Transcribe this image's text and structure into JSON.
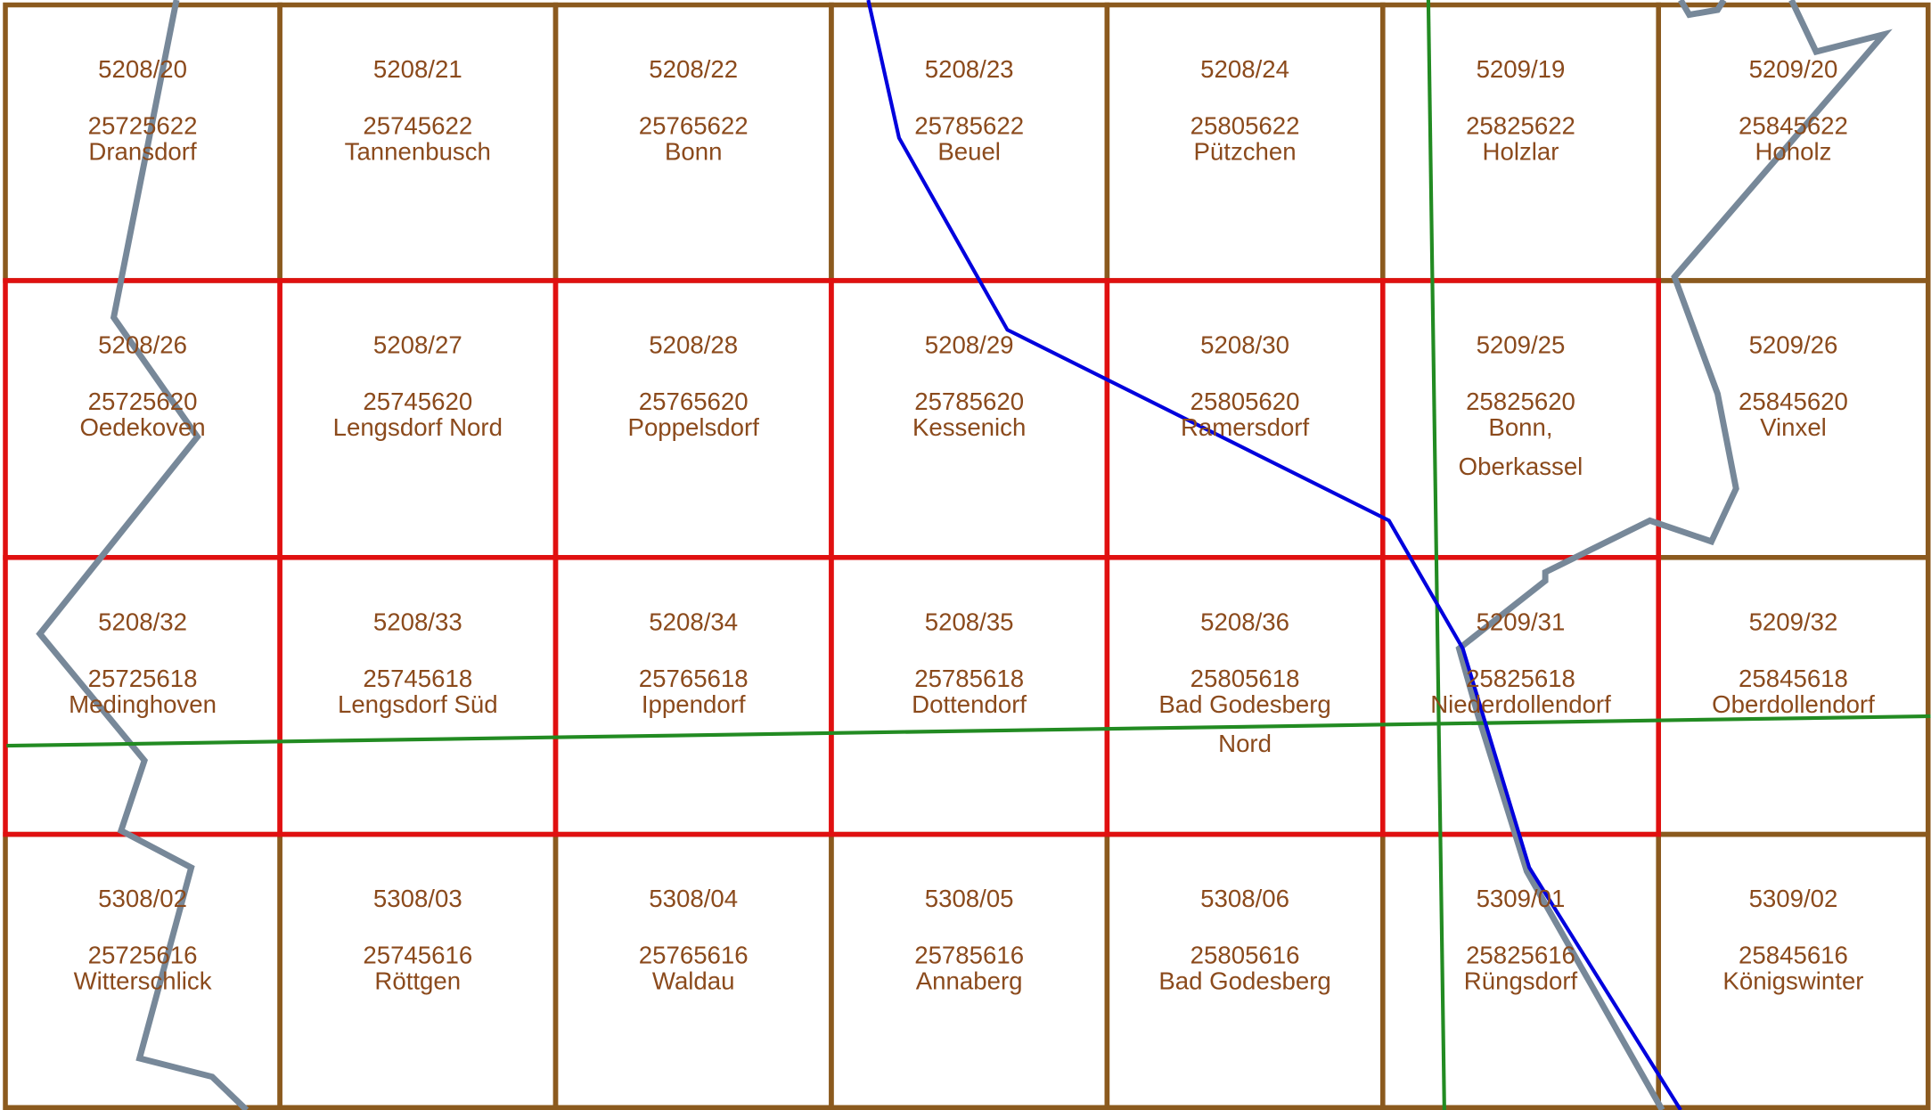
{
  "tiles": [
    [
      {
        "sheet": "5208/20",
        "code": "25725622",
        "name": [
          "Dransdorf"
        ]
      },
      {
        "sheet": "5208/21",
        "code": "25745622",
        "name": [
          "Tannenbusch"
        ]
      },
      {
        "sheet": "5208/22",
        "code": "25765622",
        "name": [
          "Bonn"
        ]
      },
      {
        "sheet": "5208/23",
        "code": "25785622",
        "name": [
          "Beuel"
        ]
      },
      {
        "sheet": "5208/24",
        "code": "25805622",
        "name": [
          "Pützchen"
        ]
      },
      {
        "sheet": "5209/19",
        "code": "25825622",
        "name": [
          "Holzlar"
        ]
      },
      {
        "sheet": "5209/20",
        "code": "25845622",
        "name": [
          "Hoholz"
        ]
      }
    ],
    [
      {
        "sheet": "5208/26",
        "code": "25725620",
        "name": [
          "Oedekoven"
        ]
      },
      {
        "sheet": "5208/27",
        "code": "25745620",
        "name": [
          "Lengsdorf Nord"
        ]
      },
      {
        "sheet": "5208/28",
        "code": "25765620",
        "name": [
          "Poppelsdorf"
        ]
      },
      {
        "sheet": "5208/29",
        "code": "25785620",
        "name": [
          "Kessenich"
        ]
      },
      {
        "sheet": "5208/30",
        "code": "25805620",
        "name": [
          "Ramersdorf"
        ]
      },
      {
        "sheet": "5209/25",
        "code": "25825620",
        "name": [
          "Bonn,",
          "Oberkassel"
        ]
      },
      {
        "sheet": "5209/26",
        "code": "25845620",
        "name": [
          "Vinxel"
        ]
      }
    ],
    [
      {
        "sheet": "5208/32",
        "code": "25725618",
        "name": [
          "Medinghoven"
        ]
      },
      {
        "sheet": "5208/33",
        "code": "25745618",
        "name": [
          "Lengsdorf Süd"
        ]
      },
      {
        "sheet": "5208/34",
        "code": "25765618",
        "name": [
          "Ippendorf"
        ]
      },
      {
        "sheet": "5208/35",
        "code": "25785618",
        "name": [
          "Dottendorf"
        ]
      },
      {
        "sheet": "5208/36",
        "code": "25805618",
        "name": [
          "Bad Godesberg",
          "Nord"
        ]
      },
      {
        "sheet": "5209/31",
        "code": "25825618",
        "name": [
          "Niederdollendorf"
        ]
      },
      {
        "sheet": "5209/32",
        "code": "25845618",
        "name": [
          "Oberdollendorf"
        ]
      }
    ],
    [
      {
        "sheet": "5308/02",
        "code": "25725616",
        "name": [
          "Witterschlick"
        ]
      },
      {
        "sheet": "5308/03",
        "code": "25745616",
        "name": [
          "Röttgen"
        ]
      },
      {
        "sheet": "5308/04",
        "code": "25765616",
        "name": [
          "Waldau"
        ]
      },
      {
        "sheet": "5308/05",
        "code": "25785616",
        "name": [
          "Annaberg"
        ]
      },
      {
        "sheet": "5308/06",
        "code": "25805616",
        "name": [
          "Bad Godesberg"
        ]
      },
      {
        "sheet": "5309/01",
        "code": "25825616",
        "name": [
          "Rüngsdorf"
        ]
      },
      {
        "sheet": "5309/02",
        "code": "25845616",
        "name": [
          "Königswinter"
        ]
      }
    ]
  ]
}
